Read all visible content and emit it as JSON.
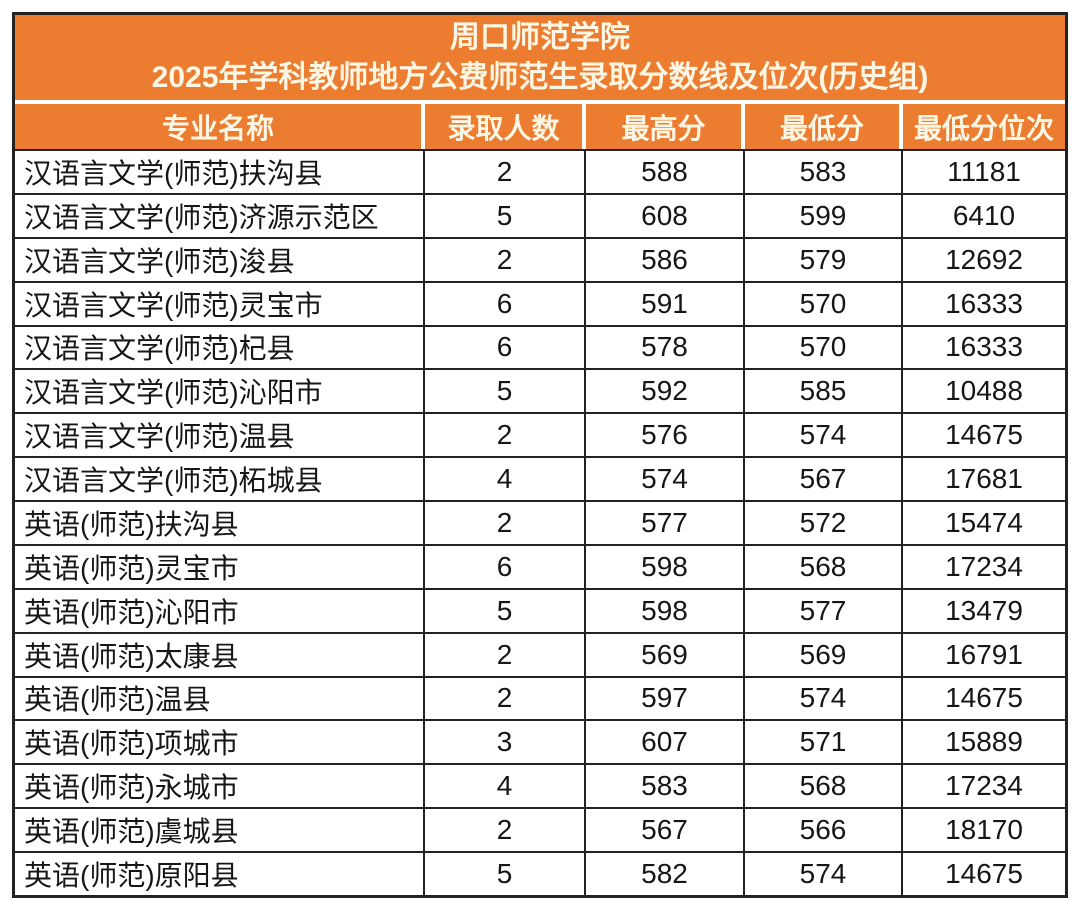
{
  "chart_data": {
    "type": "table",
    "title": "周口师范学院",
    "subtitle": "2025年学科教师地方公费师范生录取分数线及位次(历史组)",
    "columns": [
      "专业名称",
      "录取人数",
      "最高分",
      "最低分",
      "最低分位次"
    ],
    "rows": [
      [
        "汉语言文学(师范)扶沟县",
        "2",
        "588",
        "583",
        "11181"
      ],
      [
        "汉语言文学(师范)济源示范区",
        "5",
        "608",
        "599",
        "6410"
      ],
      [
        "汉语言文学(师范)浚县",
        "2",
        "586",
        "579",
        "12692"
      ],
      [
        "汉语言文学(师范)灵宝市",
        "6",
        "591",
        "570",
        "16333"
      ],
      [
        "汉语言文学(师范)杞县",
        "6",
        "578",
        "570",
        "16333"
      ],
      [
        "汉语言文学(师范)沁阳市",
        "5",
        "592",
        "585",
        "10488"
      ],
      [
        "汉语言文学(师范)温县",
        "2",
        "576",
        "574",
        "14675"
      ],
      [
        "汉语言文学(师范)柘城县",
        "4",
        "574",
        "567",
        "17681"
      ],
      [
        "英语(师范)扶沟县",
        "2",
        "577",
        "572",
        "15474"
      ],
      [
        "英语(师范)灵宝市",
        "6",
        "598",
        "568",
        "17234"
      ],
      [
        "英语(师范)沁阳市",
        "5",
        "598",
        "577",
        "13479"
      ],
      [
        "英语(师范)太康县",
        "2",
        "569",
        "569",
        "16791"
      ],
      [
        "英语(师范)温县",
        "2",
        "597",
        "574",
        "14675"
      ],
      [
        "英语(师范)项城市",
        "3",
        "607",
        "571",
        "15889"
      ],
      [
        "英语(师范)永城市",
        "4",
        "583",
        "568",
        "17234"
      ],
      [
        "英语(师范)虞城县",
        "2",
        "567",
        "566",
        "18170"
      ],
      [
        "英语(师范)原阳县",
        "5",
        "582",
        "574",
        "14675"
      ]
    ]
  },
  "colors": {
    "header_bg": "#EC7D30",
    "header_text": "#FCF6E5",
    "border_dark": "#222222",
    "divider_white": "#FFFFFF",
    "cell_bg": "#FFFFFF",
    "cell_text": "#161616",
    "page_bg": "#FFFFFF"
  }
}
